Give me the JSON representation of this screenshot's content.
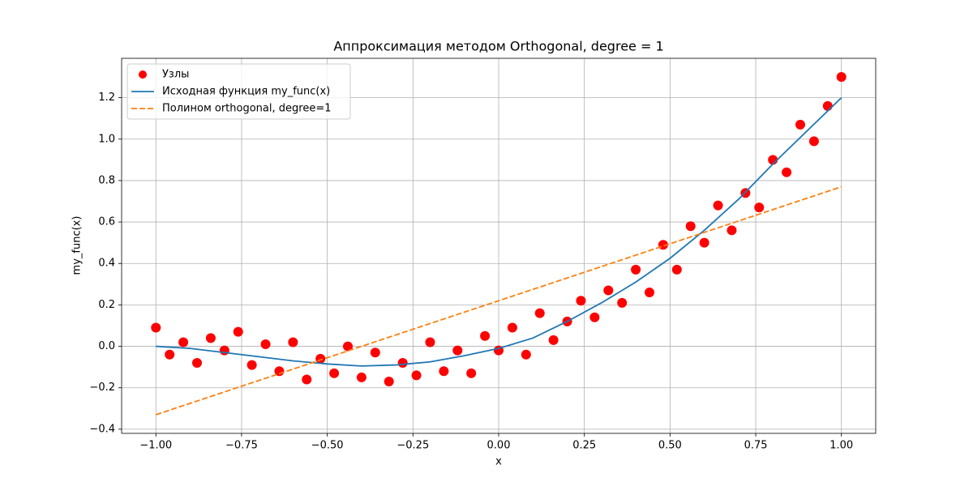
{
  "chart_data": {
    "type": "scatter",
    "title": "Аппроксимация методом Orthogonal, degree = 1",
    "xlabel": "x",
    "ylabel": "my_func(x)",
    "xlim": [
      -1.1,
      1.1
    ],
    "ylim": [
      -0.42,
      1.39
    ],
    "grid": true,
    "legend": "upper left",
    "xticks": [
      {
        "value": -1,
        "label": "−1.00"
      },
      {
        "value": -0.75,
        "label": "−0.75"
      },
      {
        "value": -0.5,
        "label": "−0.50"
      },
      {
        "value": -0.25,
        "label": "−0.25"
      },
      {
        "value": 0,
        "label": "0.00"
      },
      {
        "value": 0.25,
        "label": "0.25"
      },
      {
        "value": 0.5,
        "label": "0.50"
      },
      {
        "value": 0.75,
        "label": "0.75"
      },
      {
        "value": 1,
        "label": "1.00"
      }
    ],
    "yticks": [
      {
        "value": -0.4,
        "label": "−0.4"
      },
      {
        "value": -0.2,
        "label": "−0.2"
      },
      {
        "value": 0,
        "label": "0.0"
      },
      0.2,
      0.4,
      0.6,
      0.8,
      {
        "value": 1,
        "label": "1.0"
      },
      1.2
    ],
    "series": [
      {
        "name": "Узлы",
        "type": "scatter",
        "color": "#ff0000",
        "x": [
          -1,
          -0.96,
          -0.92,
          -0.88,
          -0.84,
          -0.8,
          -0.76,
          -0.72,
          -0.68,
          -0.64,
          -0.6,
          -0.56,
          -0.52,
          -0.48,
          -0.44,
          -0.4,
          -0.36,
          -0.32,
          -0.28,
          -0.24,
          -0.2,
          -0.16,
          -0.12,
          -0.08,
          -0.04,
          0,
          0.04,
          0.08,
          0.12,
          0.16,
          0.2,
          0.24,
          0.28,
          0.32,
          0.36,
          0.4,
          0.44,
          0.48,
          0.52,
          0.56,
          0.6,
          0.64,
          0.68,
          0.72,
          0.76,
          0.8,
          0.84,
          0.88,
          0.92,
          0.96,
          1
        ],
        "values": [
          0.09,
          -0.04,
          0.02,
          -0.08,
          0.04,
          -0.02,
          0.07,
          -0.09,
          0.01,
          -0.12,
          0.02,
          -0.16,
          -0.06,
          -0.13,
          0.0,
          -0.15,
          -0.03,
          -0.17,
          -0.08,
          -0.14,
          0.02,
          -0.12,
          -0.02,
          -0.13,
          0.05,
          -0.02,
          0.09,
          -0.04,
          0.16,
          0.03,
          0.12,
          0.22,
          0.14,
          0.27,
          0.21,
          0.37,
          0.26,
          0.49,
          0.37,
          0.58,
          0.5,
          0.68,
          0.56,
          0.74,
          0.67,
          0.9,
          0.84,
          1.07,
          0.99,
          1.16,
          1.3
        ]
      },
      {
        "name": "Исходная функция my_func(x)",
        "type": "line",
        "color": "#1f77b4",
        "linestyle": "solid",
        "x": [
          -1,
          -0.9,
          -0.8,
          -0.7,
          -0.6,
          -0.5,
          -0.4,
          -0.3,
          -0.2,
          -0.1,
          0,
          0.1,
          0.2,
          0.3,
          0.4,
          0.5,
          0.6,
          0.7,
          0.8,
          0.9,
          1
        ],
        "values": [
          0.0,
          -0.01,
          -0.03,
          -0.05,
          -0.07,
          -0.085,
          -0.095,
          -0.09,
          -0.075,
          -0.045,
          -0.01,
          0.04,
          0.12,
          0.21,
          0.31,
          0.425,
          0.56,
          0.71,
          0.88,
          1.04,
          1.2
        ]
      },
      {
        "name": "Полином orthogonal, degree=1",
        "type": "line",
        "color": "#ff7f0e",
        "linestyle": "dashed",
        "x": [
          -1,
          1
        ],
        "values": [
          -0.33,
          0.77
        ]
      }
    ]
  }
}
